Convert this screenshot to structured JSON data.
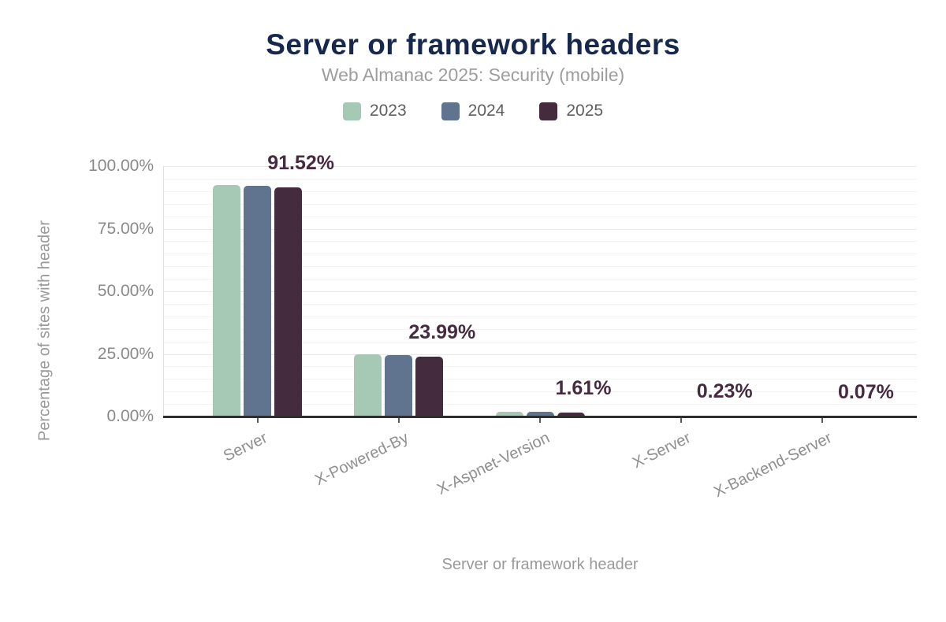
{
  "header": {
    "title": "Server or framework headers",
    "subtitle": "Web Almanac 2025: Security (mobile)"
  },
  "chart_data": {
    "type": "bar",
    "title": "Server or framework headers",
    "subtitle": "Web Almanac 2025: Security (mobile)",
    "categories": [
      "Server",
      "X-Powered-By",
      "X-Aspnet-Version",
      "X-Server",
      "X-Backend-Server"
    ],
    "series": [
      {
        "name": "2023",
        "color": "#a6c9b6",
        "values": [
          92.6,
          25.0,
          2.0,
          0.3,
          0.09
        ]
      },
      {
        "name": "2024",
        "color": "#60748f",
        "values": [
          92.0,
          24.5,
          1.8,
          0.26,
          0.08
        ]
      },
      {
        "name": "2025",
        "color": "#452b3e",
        "values": [
          91.52,
          23.99,
          1.61,
          0.23,
          0.07
        ]
      }
    ],
    "value_labels": [
      "91.52%",
      "23.99%",
      "1.61%",
      "0.23%",
      "0.07%"
    ],
    "value_labels_series": "2025",
    "xlabel": "Server or framework header",
    "ylabel": "Percentage of sites with header",
    "y_ticks": [
      {
        "pct": 0,
        "label": "0.00%"
      },
      {
        "pct": 25,
        "label": "25.00%"
      },
      {
        "pct": 50,
        "label": "50.00%"
      },
      {
        "pct": 75,
        "label": "75.00%"
      },
      {
        "pct": 100,
        "label": "100.00%"
      }
    ],
    "ylim": [
      0,
      100
    ],
    "grid": {
      "major_step_pct": 25,
      "minor_step_pct": 5,
      "grid_on": true
    },
    "legend_position": "top"
  },
  "colors": {
    "title": "#16294d",
    "subtitle": "#9d9d9d",
    "value_label": "#462a3f",
    "axis_text": "#8f8f8f",
    "major_grid": "#e8e8e8",
    "minor_grid": "#f3f3f3",
    "baseline": "#2e2e2e",
    "background": "#ffffff"
  }
}
